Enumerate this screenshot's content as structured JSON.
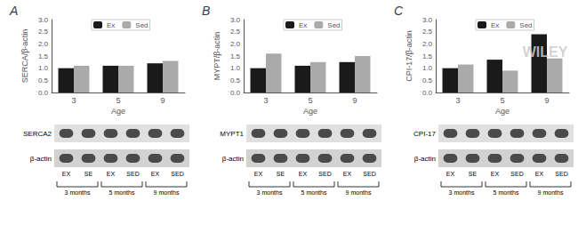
{
  "chart_data": [
    {
      "type": "bar",
      "title": "A",
      "xlabel": "Age",
      "ylabel": "SERCA/β-actin",
      "categories": [
        "3",
        "5",
        "9"
      ],
      "series": [
        {
          "name": "Ex",
          "color": "#1a1a1a",
          "values": [
            1.0,
            1.1,
            1.2
          ]
        },
        {
          "name": "Sed",
          "color": "#aaaaaa",
          "values": [
            1.1,
            1.1,
            1.3
          ]
        }
      ],
      "ylim": [
        0,
        3.0
      ],
      "yticks": [
        {
          "value": 0.0,
          "label": "0.0"
        },
        {
          "value": 0.5,
          "label": "0.5"
        },
        {
          "value": 1.0,
          "label": "1.0"
        },
        {
          "value": 1.5,
          "label": "1.5"
        },
        {
          "value": 2.0,
          "label": "2.0"
        },
        {
          "value": 2.5,
          "label": "2.5"
        },
        {
          "value": 3.0,
          "label": "3.0"
        }
      ],
      "legend": "upper left",
      "annotations": {
        "blot_rows": [
          "SERCA2",
          "β-actin"
        ],
        "lanes": [
          "EX",
          "SE",
          "EX",
          "SED",
          "EX",
          "SED"
        ],
        "lane_groups": [
          "3 months",
          "5 months",
          "9 months"
        ]
      }
    },
    {
      "type": "bar",
      "title": "B",
      "xlabel": "Age",
      "ylabel": "MYPT/β-actin",
      "categories": [
        "3",
        "5",
        "9"
      ],
      "series": [
        {
          "name": "Ex",
          "color": "#1a1a1a",
          "values": [
            1.0,
            1.1,
            1.25
          ]
        },
        {
          "name": "Sed",
          "color": "#aaaaaa",
          "values": [
            1.6,
            1.25,
            1.5
          ]
        }
      ],
      "ylim": [
        0,
        3.0
      ],
      "yticks": [
        {
          "value": 0.0,
          "label": "0.0"
        },
        {
          "value": 0.5,
          "label": "0.5"
        },
        {
          "value": 1.0,
          "label": "1.0"
        },
        {
          "value": 1.5,
          "label": "1.5"
        },
        {
          "value": 2.0,
          "label": "2.0"
        },
        {
          "value": 2.5,
          "label": "2.5"
        },
        {
          "value": 3.0,
          "label": "3.0"
        }
      ],
      "legend": "upper left",
      "annotations": {
        "blot_rows": [
          "MYPT1",
          "β-actin"
        ],
        "lanes": [
          "EX",
          "SE",
          "EX",
          "SED",
          "EX",
          "SED"
        ],
        "lane_groups": [
          "3 months",
          "5 months",
          "9 months"
        ]
      }
    },
    {
      "type": "bar",
      "title": "C",
      "xlabel": "Age",
      "ylabel": "CPI-17/β-actin",
      "categories": [
        "3",
        "5",
        "9"
      ],
      "series": [
        {
          "name": "Ex",
          "color": "#1a1a1a",
          "values": [
            1.0,
            1.35,
            2.4
          ]
        },
        {
          "name": "Sed",
          "color": "#aaaaaa",
          "values": [
            1.15,
            0.9,
            1.4
          ]
        }
      ],
      "ylim": [
        0,
        3.0
      ],
      "yticks": [
        {
          "value": 0.0,
          "label": "0.0"
        },
        {
          "value": 0.5,
          "label": "0.5"
        },
        {
          "value": 1.0,
          "label": "1.0"
        },
        {
          "value": 1.5,
          "label": "1.5"
        },
        {
          "value": 2.0,
          "label": "2.0"
        },
        {
          "value": 2.5,
          "label": "2.5"
        },
        {
          "value": 3.0,
          "label": "3.0"
        }
      ],
      "legend": "upper left",
      "annotations": {
        "blot_rows": [
          "CPI-17",
          "β-actin"
        ],
        "lanes": [
          "EX",
          "SE",
          "EX",
          "SED",
          "EX",
          "SED"
        ],
        "lane_groups": [
          "3 months",
          "5 months",
          "9 months"
        ],
        "watermark": "WILEY"
      }
    }
  ]
}
